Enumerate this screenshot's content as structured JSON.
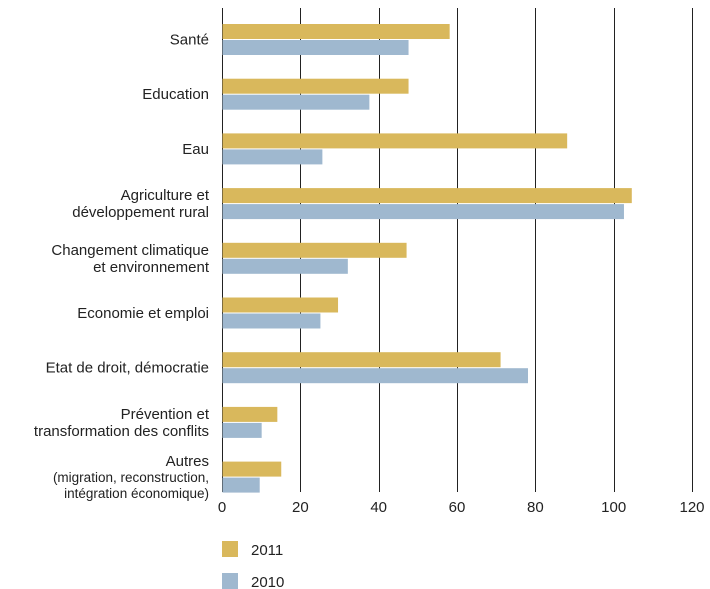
{
  "chart_data": {
    "type": "bar",
    "orientation": "horizontal",
    "categories": [
      [
        "Santé"
      ],
      [
        "Education"
      ],
      [
        "Eau"
      ],
      [
        "Agriculture et",
        "développement rural"
      ],
      [
        "Changement climatique",
        "et environnement"
      ],
      [
        "Economie et emploi"
      ],
      [
        "Etat de droit, démocratie"
      ],
      [
        "Prévention et",
        "transformation des conflits"
      ],
      [
        "Autres",
        "(migration, reconstruction,",
        "intégration économique)"
      ]
    ],
    "series": [
      {
        "name": "2011",
        "color": "#d9b85c",
        "values": [
          58,
          47.5,
          88,
          104.5,
          47,
          29.5,
          71,
          14,
          15
        ]
      },
      {
        "name": "2010",
        "color": "#9fb8cf",
        "values": [
          47.5,
          37.5,
          25.5,
          102.5,
          32,
          25,
          78,
          10,
          9.5
        ]
      }
    ],
    "xlim": [
      0,
      120
    ],
    "xticks": [
      "0",
      "20",
      "40",
      "60",
      "80",
      "100",
      "120"
    ],
    "grid": true,
    "legend_position": "bottom-left"
  }
}
